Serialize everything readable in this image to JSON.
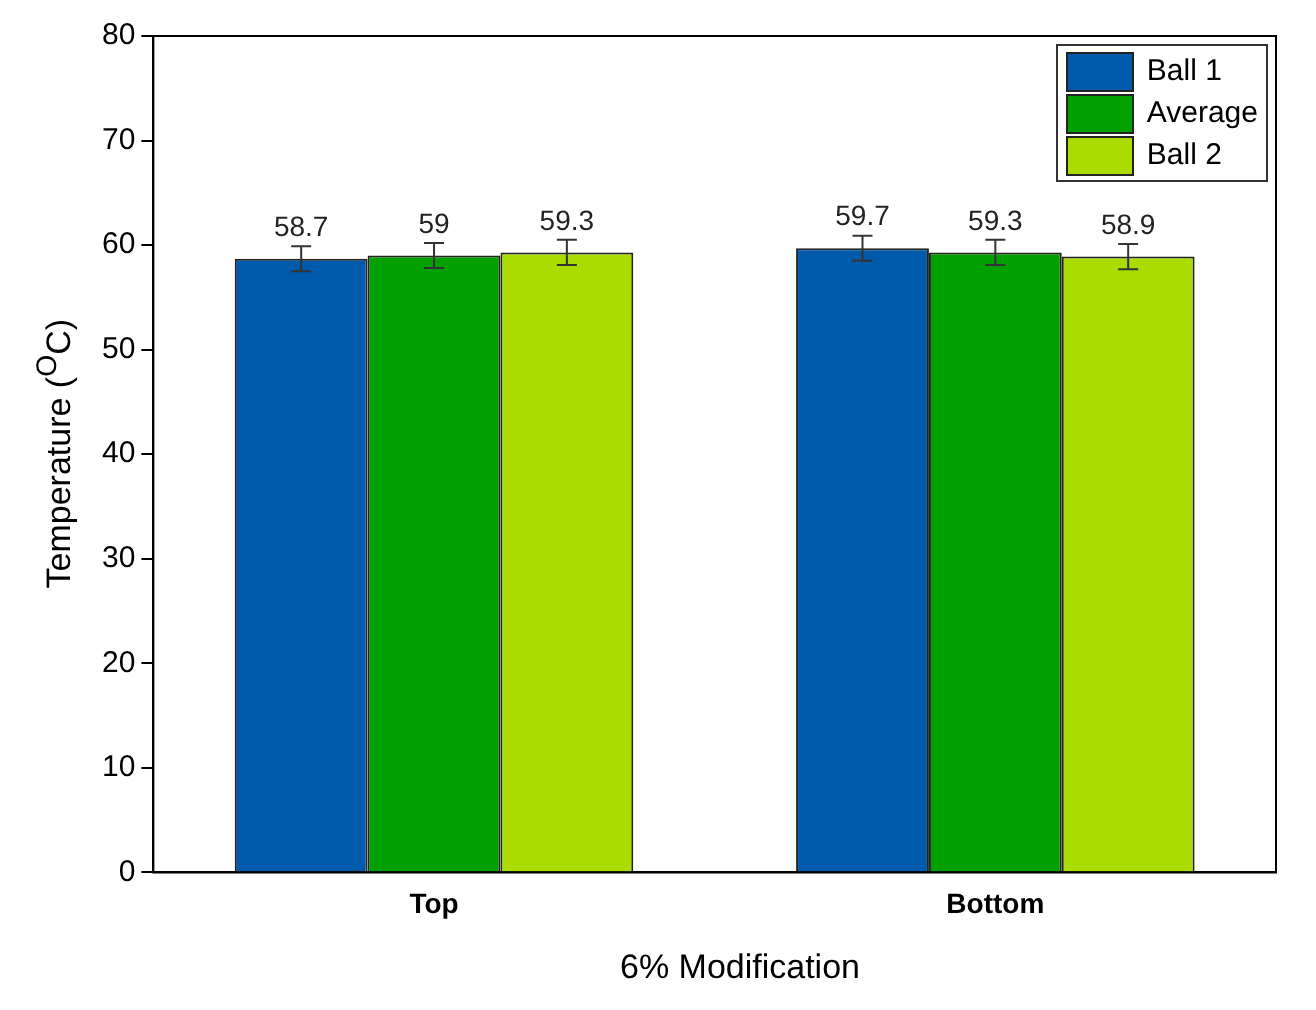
{
  "chart_data": {
    "type": "bar",
    "xlabel": "6% Modification",
    "ylabel": "Temperature ($^{O}$C)",
    "categories": [
      "Top",
      "Bottom"
    ],
    "series": [
      {
        "name": "Ball 1",
        "color": "#005aab",
        "values": [
          58.7,
          59.7
        ],
        "errors": [
          1.2,
          1.2
        ]
      },
      {
        "name": "Average",
        "color": "#00a000",
        "values": [
          59,
          59.3
        ],
        "errors": [
          1.2,
          1.2
        ]
      },
      {
        "name": "Ball 2",
        "color": "#aadc00",
        "values": [
          59.3,
          58.9
        ],
        "errors": [
          1.2,
          1.2
        ]
      }
    ],
    "ylim": [
      0,
      80
    ],
    "yticks": [
      0,
      10,
      20,
      30,
      40,
      50,
      60,
      70,
      80
    ],
    "grid": false,
    "legend": "top right",
    "data_labels": true
  }
}
